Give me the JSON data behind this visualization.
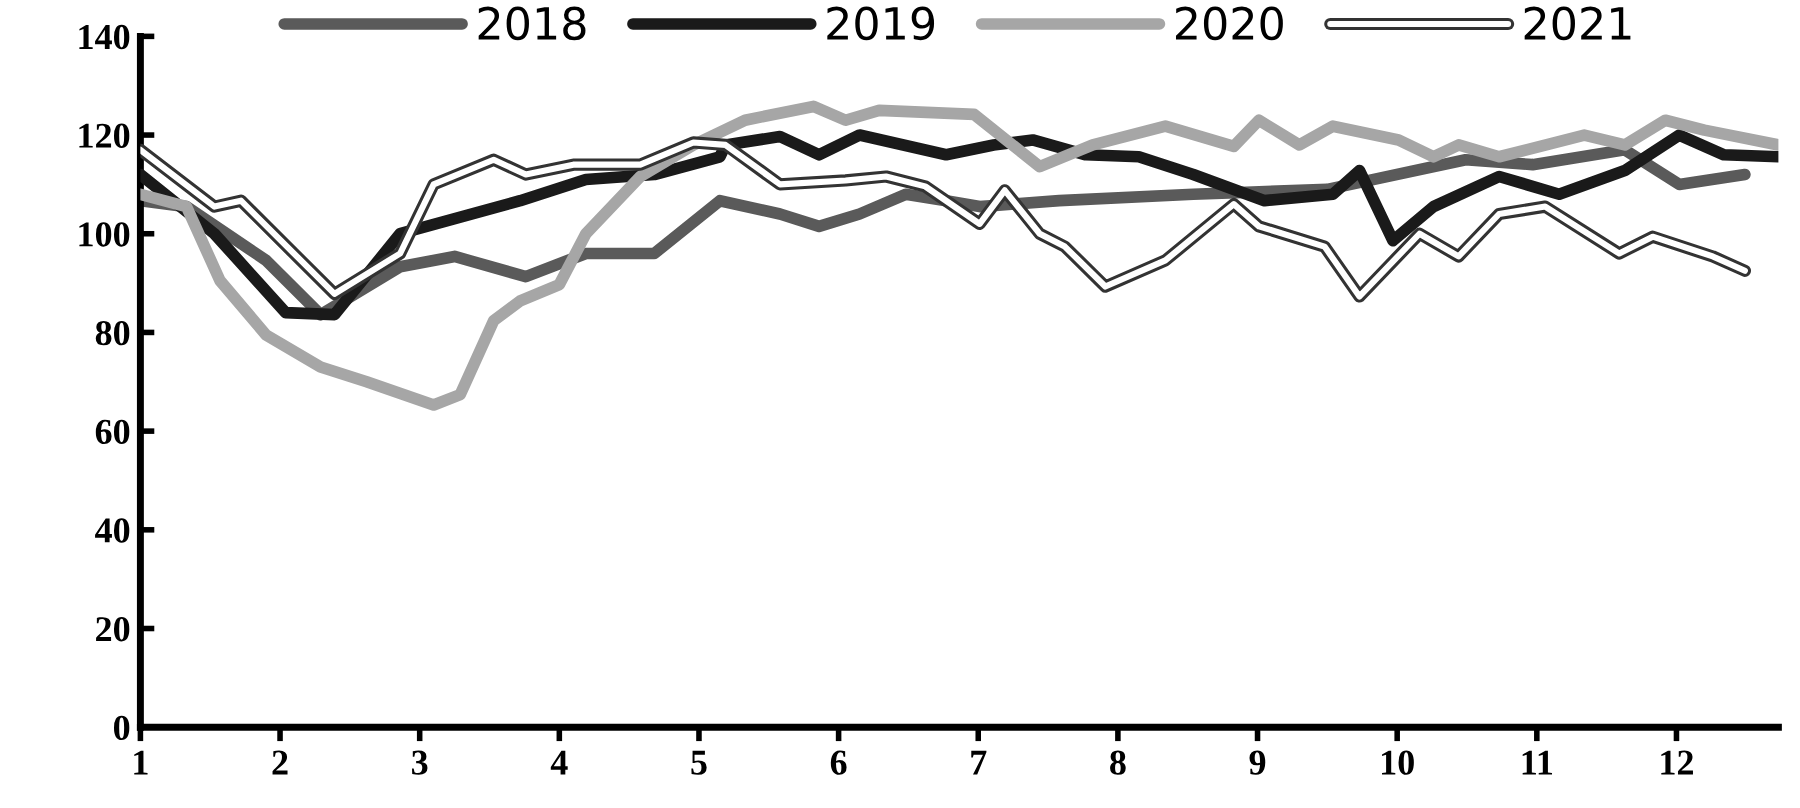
{
  "chart_data": {
    "type": "line",
    "xlim": [
      1,
      12.73
    ],
    "xticks": [
      1,
      2,
      3,
      4,
      5,
      6,
      7,
      8,
      9,
      10,
      11,
      12
    ],
    "ylim": [
      0,
      140
    ],
    "yticks": [
      0,
      20,
      40,
      60,
      80,
      100,
      120,
      140
    ],
    "grid": false,
    "legend": "top",
    "marker": "none",
    "line_style": "solid",
    "series": [
      {
        "name": "2018",
        "color": "#5a5a5a",
        "x": [
          1.0,
          1.33,
          1.9,
          2.29,
          2.86,
          3.25,
          3.76,
          4.19,
          4.68,
          5.15,
          5.58,
          5.86,
          6.15,
          6.48,
          6.77,
          7.01,
          7.58,
          8.54,
          9.5,
          10.49,
          10.97,
          11.63,
          12.02,
          12.49
        ],
        "values": [
          106.7,
          105.5,
          94.6,
          83.6,
          93.3,
          95.4,
          91.3,
          96,
          96,
          106.7,
          104,
          101.5,
          104,
          108,
          106.7,
          105.5,
          106.7,
          108,
          109,
          115,
          114,
          117,
          110,
          112
        ]
      },
      {
        "name": "2019",
        "color": "#1a1a1a",
        "x": [
          1.0,
          1.53,
          2.04,
          2.39,
          2.86,
          3.72,
          4.19,
          4.68,
          5.15,
          5.19,
          5.58,
          5.86,
          6.15,
          6.77,
          7.11,
          7.39,
          7.77,
          8.15,
          8.54,
          9.05,
          9.54,
          9.73,
          9.97,
          10.26,
          10.73,
          11.16,
          11.63,
          12.02,
          12.34,
          12.73
        ],
        "values": [
          112,
          100,
          84,
          83.6,
          100,
          106.7,
          111,
          112,
          115.6,
          118,
          119.7,
          116,
          120,
          116,
          118,
          119,
          116,
          115.6,
          112,
          106.7,
          108,
          112.8,
          98.6,
          105.5,
          111.6,
          108,
          112.8,
          120,
          116,
          115.6
        ]
      },
      {
        "name": "2020",
        "color": "#a6a6a6",
        "x": [
          1.0,
          1.33,
          1.57,
          1.9,
          2.29,
          2.62,
          3.1,
          3.29,
          3.53,
          3.72,
          4.0,
          4.19,
          4.58,
          4.96,
          5.33,
          5.82,
          6.05,
          6.29,
          6.97,
          7.44,
          7.82,
          8.34,
          8.83,
          9.01,
          9.3,
          9.54,
          10.01,
          10.26,
          10.44,
          10.73,
          11.34,
          11.63,
          11.92,
          12.2,
          12.73
        ],
        "values": [
          108,
          105.5,
          90.5,
          79.5,
          73,
          70,
          65.3,
          67.4,
          82.4,
          86.4,
          89.7,
          100,
          111.6,
          118,
          123,
          125.8,
          123,
          125,
          124.2,
          113.6,
          118,
          121.8,
          117.7,
          123,
          118,
          121.8,
          119,
          115.6,
          118,
          115.6,
          120,
          118,
          123,
          121,
          118
        ]
      },
      {
        "name": "2021",
        "color": "#ffffff",
        "x": [
          1.0,
          1.53,
          1.72,
          2.39,
          2.86,
          3.1,
          3.53,
          3.76,
          4.1,
          4.58,
          4.96,
          5.19,
          5.58,
          6.05,
          6.34,
          6.62,
          7.01,
          7.19,
          7.44,
          7.62,
          7.91,
          8.34,
          8.83,
          9.01,
          9.48,
          9.73,
          10.16,
          10.44,
          10.73,
          11.06,
          11.59,
          11.83,
          12.26,
          12.49
        ],
        "values": [
          117,
          105.5,
          106.7,
          87.8,
          96,
          110,
          115,
          112,
          114,
          114,
          118.5,
          118,
          110,
          110.8,
          111.6,
          109.6,
          102,
          108.8,
          100,
          97.4,
          89.3,
          94.6,
          106,
          101.5,
          97.4,
          87.3,
          100,
          95.4,
          104,
          105.5,
          96,
          99.4,
          95.4,
          92.5
        ]
      }
    ]
  }
}
